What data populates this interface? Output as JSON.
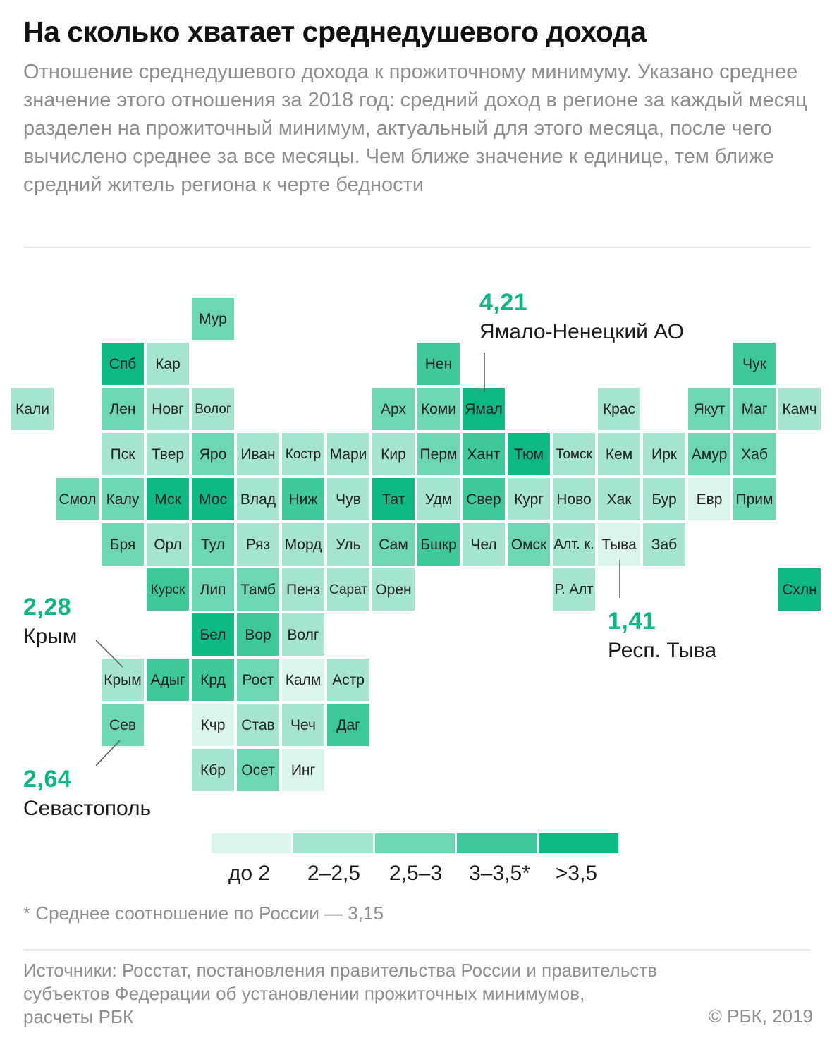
{
  "title": "На сколько хватает среднедушевого дохода",
  "subtitle": "Отношение среднедушевого дохода к прожиточному минимуму. Указано среднее значение этого отношения за 2018 год: средний доход в регионе за каждый месяц разделен на прожиточный минимум, актуальный для этого месяца, после чего вычислено среднее за все месяцы. Чем ближе значение к единице, тем ближе средний житель региона к черте бедности",
  "colors": [
    "#dcf5ec",
    "#a5e4cf",
    "#6fd6b3",
    "#3fc899",
    "#10b886"
  ],
  "regions": [
    {
      "label": "Мур",
      "col": 4,
      "row": 0,
      "level": 2
    },
    {
      "label": "Спб",
      "col": 2,
      "row": 1,
      "level": 4
    },
    {
      "label": "Кар",
      "col": 3,
      "row": 1,
      "level": 1
    },
    {
      "label": "Нен",
      "col": 9,
      "row": 1,
      "level": 3
    },
    {
      "label": "Чук",
      "col": 16,
      "row": 1,
      "level": 3
    },
    {
      "label": "Кали",
      "col": 0,
      "row": 2,
      "level": 1
    },
    {
      "label": "Лен",
      "col": 2,
      "row": 2,
      "level": 2
    },
    {
      "label": "Новг",
      "col": 3,
      "row": 2,
      "level": 1
    },
    {
      "label": "Волог",
      "col": 4,
      "row": 2,
      "level": 1
    },
    {
      "label": "Арх",
      "col": 8,
      "row": 2,
      "level": 2
    },
    {
      "label": "Коми",
      "col": 9,
      "row": 2,
      "level": 2
    },
    {
      "label": "Ямал",
      "col": 10,
      "row": 2,
      "level": 4
    },
    {
      "label": "Крас",
      "col": 13,
      "row": 2,
      "level": 1
    },
    {
      "label": "Якут",
      "col": 15,
      "row": 2,
      "level": 2
    },
    {
      "label": "Маг",
      "col": 16,
      "row": 2,
      "level": 2
    },
    {
      "label": "Камч",
      "col": 17,
      "row": 2,
      "level": 1
    },
    {
      "label": "Пск",
      "col": 2,
      "row": 3,
      "level": 1
    },
    {
      "label": "Твер",
      "col": 3,
      "row": 3,
      "level": 1
    },
    {
      "label": "Яро",
      "col": 4,
      "row": 3,
      "level": 2
    },
    {
      "label": "Иван",
      "col": 5,
      "row": 3,
      "level": 1
    },
    {
      "label": "Костр",
      "col": 6,
      "row": 3,
      "level": 1
    },
    {
      "label": "Мари",
      "col": 7,
      "row": 3,
      "level": 1
    },
    {
      "label": "Кир",
      "col": 8,
      "row": 3,
      "level": 1
    },
    {
      "label": "Перм",
      "col": 9,
      "row": 3,
      "level": 2
    },
    {
      "label": "Хант",
      "col": 10,
      "row": 3,
      "level": 3
    },
    {
      "label": "Тюм",
      "col": 11,
      "row": 3,
      "level": 4
    },
    {
      "label": "Томск",
      "col": 12,
      "row": 3,
      "level": 1
    },
    {
      "label": "Кем",
      "col": 13,
      "row": 3,
      "level": 1
    },
    {
      "label": "Ирк",
      "col": 14,
      "row": 3,
      "level": 1
    },
    {
      "label": "Амур",
      "col": 15,
      "row": 3,
      "level": 2
    },
    {
      "label": "Хаб",
      "col": 16,
      "row": 3,
      "level": 2
    },
    {
      "label": "Смол",
      "col": 1,
      "row": 4,
      "level": 2
    },
    {
      "label": "Калу",
      "col": 2,
      "row": 4,
      "level": 2
    },
    {
      "label": "Мск",
      "col": 3,
      "row": 4,
      "level": 4
    },
    {
      "label": "Мос",
      "col": 4,
      "row": 4,
      "level": 4
    },
    {
      "label": "Влад",
      "col": 5,
      "row": 4,
      "level": 1
    },
    {
      "label": "Ниж",
      "col": 6,
      "row": 4,
      "level": 3
    },
    {
      "label": "Чув",
      "col": 7,
      "row": 4,
      "level": 1
    },
    {
      "label": "Тат",
      "col": 8,
      "row": 4,
      "level": 4
    },
    {
      "label": "Удм",
      "col": 9,
      "row": 4,
      "level": 1
    },
    {
      "label": "Свер",
      "col": 10,
      "row": 4,
      "level": 3
    },
    {
      "label": "Кург",
      "col": 11,
      "row": 4,
      "level": 1
    },
    {
      "label": "Ново",
      "col": 12,
      "row": 4,
      "level": 1
    },
    {
      "label": "Хак",
      "col": 13,
      "row": 4,
      "level": 1
    },
    {
      "label": "Бур",
      "col": 14,
      "row": 4,
      "level": 1
    },
    {
      "label": "Евр",
      "col": 15,
      "row": 4,
      "level": 0
    },
    {
      "label": "Прим",
      "col": 16,
      "row": 4,
      "level": 2
    },
    {
      "label": "Бря",
      "col": 2,
      "row": 5,
      "level": 2
    },
    {
      "label": "Орл",
      "col": 3,
      "row": 5,
      "level": 1
    },
    {
      "label": "Тул",
      "col": 4,
      "row": 5,
      "level": 2
    },
    {
      "label": "Ряз",
      "col": 5,
      "row": 5,
      "level": 1
    },
    {
      "label": "Морд",
      "col": 6,
      "row": 5,
      "level": 1
    },
    {
      "label": "Уль",
      "col": 7,
      "row": 5,
      "level": 1
    },
    {
      "label": "Сам",
      "col": 8,
      "row": 5,
      "level": 2
    },
    {
      "label": "Бшкр",
      "col": 9,
      "row": 5,
      "level": 3
    },
    {
      "label": "Чел",
      "col": 10,
      "row": 5,
      "level": 1
    },
    {
      "label": "Омск",
      "col": 11,
      "row": 5,
      "level": 2
    },
    {
      "label": "Алт. к.",
      "col": 12,
      "row": 5,
      "level": 1
    },
    {
      "label": "Тыва",
      "col": 13,
      "row": 5,
      "level": 0
    },
    {
      "label": "Заб",
      "col": 14,
      "row": 5,
      "level": 1
    },
    {
      "label": "Курск",
      "col": 3,
      "row": 6,
      "level": 3
    },
    {
      "label": "Лип",
      "col": 4,
      "row": 6,
      "level": 2
    },
    {
      "label": "Тамб",
      "col": 5,
      "row": 6,
      "level": 2
    },
    {
      "label": "Пенз",
      "col": 6,
      "row": 6,
      "level": 1
    },
    {
      "label": "Сарат",
      "col": 7,
      "row": 6,
      "level": 1
    },
    {
      "label": "Орен",
      "col": 8,
      "row": 6,
      "level": 1
    },
    {
      "label": "Р. Алт",
      "col": 12,
      "row": 6,
      "level": 1
    },
    {
      "label": "Схлн",
      "col": 17,
      "row": 6,
      "level": 4
    },
    {
      "label": "Бел",
      "col": 4,
      "row": 7,
      "level": 4
    },
    {
      "label": "Вор",
      "col": 5,
      "row": 7,
      "level": 3
    },
    {
      "label": "Волг",
      "col": 6,
      "row": 7,
      "level": 1
    },
    {
      "label": "Крым",
      "col": 2,
      "row": 8,
      "level": 1
    },
    {
      "label": "Адыг",
      "col": 3,
      "row": 8,
      "level": 3
    },
    {
      "label": "Крд",
      "col": 4,
      "row": 8,
      "level": 3
    },
    {
      "label": "Рост",
      "col": 5,
      "row": 8,
      "level": 2
    },
    {
      "label": "Калм",
      "col": 6,
      "row": 8,
      "level": 0
    },
    {
      "label": "Астр",
      "col": 7,
      "row": 8,
      "level": 1
    },
    {
      "label": "Сев",
      "col": 2,
      "row": 9,
      "level": 2
    },
    {
      "label": "Кчр",
      "col": 4,
      "row": 9,
      "level": 0
    },
    {
      "label": "Став",
      "col": 5,
      "row": 9,
      "level": 1
    },
    {
      "label": "Чеч",
      "col": 6,
      "row": 9,
      "level": 1
    },
    {
      "label": "Даг",
      "col": 7,
      "row": 9,
      "level": 3
    },
    {
      "label": "Кбр",
      "col": 4,
      "row": 10,
      "level": 1
    },
    {
      "label": "Осет",
      "col": 5,
      "row": 10,
      "level": 2
    },
    {
      "label": "Инг",
      "col": 6,
      "row": 10,
      "level": 0
    }
  ],
  "callouts": [
    {
      "value": "4,21",
      "label": "Ямало-Ненецкий АО"
    },
    {
      "value": "2,28",
      "label": "Крым"
    },
    {
      "value": "2,64",
      "label": "Севастополь"
    },
    {
      "value": "1,41",
      "label": "Респ. Тыва"
    }
  ],
  "legend": [
    "до 2",
    "2–2,5",
    "2,5–3",
    "3–3,5*",
    ">3,5"
  ],
  "footnote": "* Среднее соотношение по России — 3,15",
  "source": "Источники: Росстат, постановления правительства России и правительств субъектов Федерации об установлении прожиточных минимумов, расчеты РБК",
  "copyright": "© РБК, 2019"
}
